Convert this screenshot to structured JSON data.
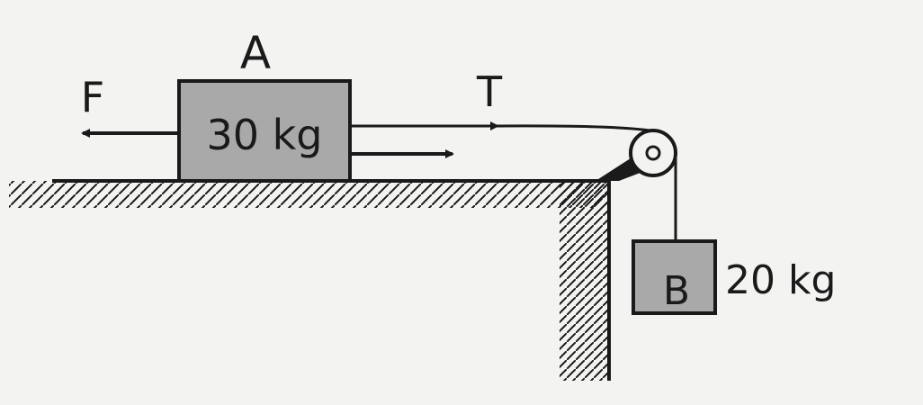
{
  "diagram": {
    "block_a": {
      "name": "A",
      "mass_label": "30 kg"
    },
    "block_b": {
      "name": "B",
      "mass_label": "20 kg"
    },
    "forces": {
      "applied": "F",
      "tension": "T"
    },
    "colors": {
      "block_fill": "#a9a9a9",
      "ink": "#1a1a1a",
      "paper": "#f3f3f1"
    }
  }
}
